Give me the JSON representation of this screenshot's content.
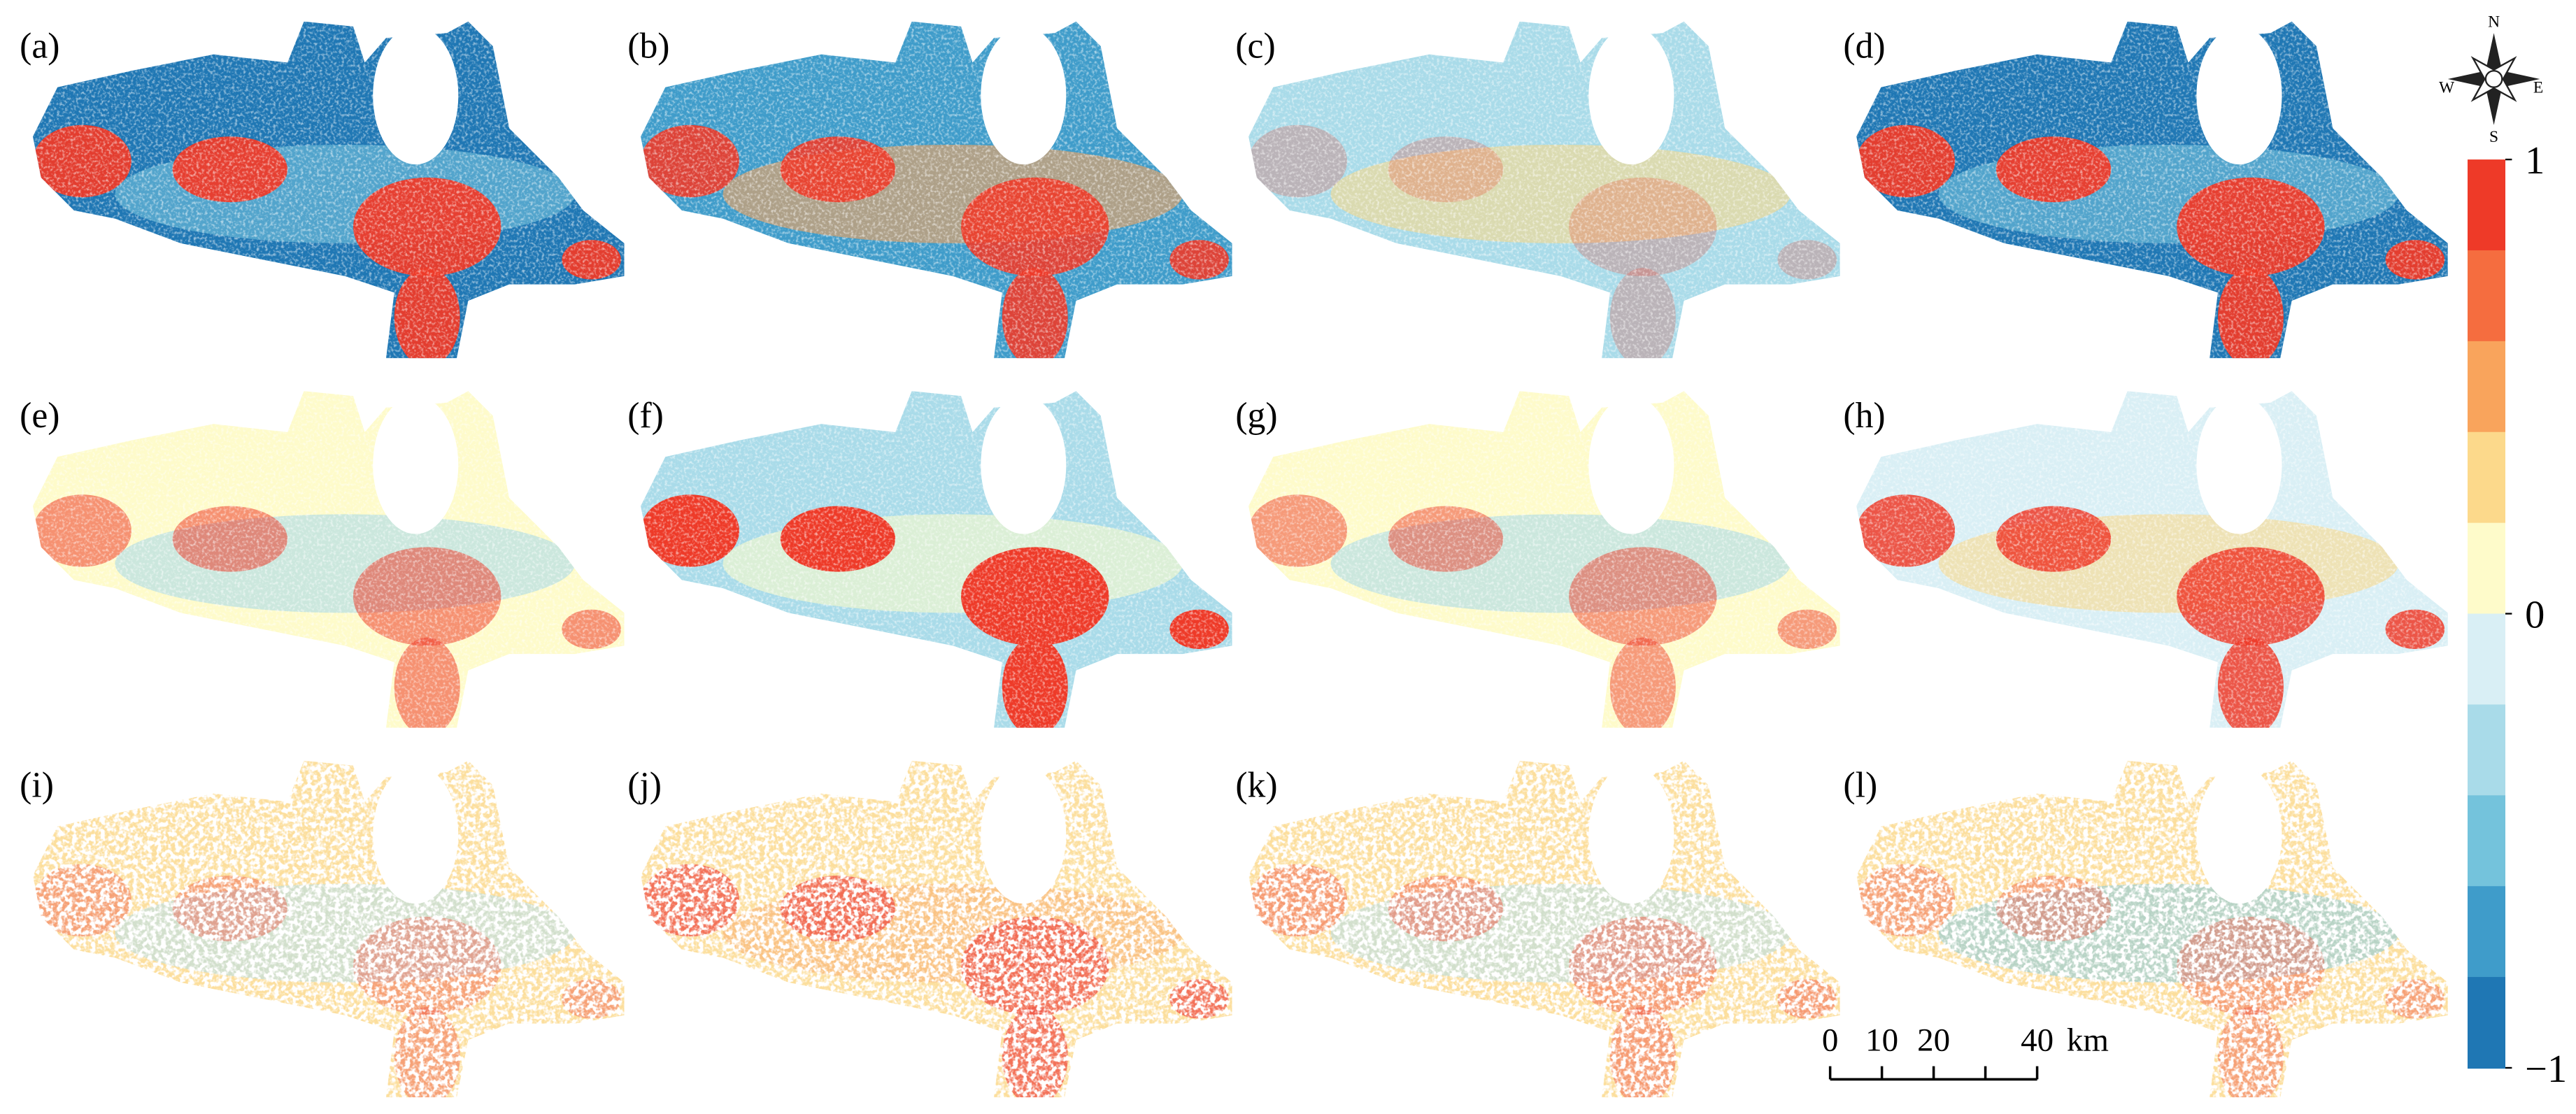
{
  "panels": [
    {
      "label": "(a)"
    },
    {
      "label": "(b)"
    },
    {
      "label": "(c)"
    },
    {
      "label": "(d)"
    },
    {
      "label": "(e)"
    },
    {
      "label": "(f)"
    },
    {
      "label": "(g)"
    },
    {
      "label": "(h)"
    },
    {
      "label": "(i)"
    },
    {
      "label": "(j)"
    },
    {
      "label": "(k)"
    },
    {
      "label": "(l)"
    }
  ],
  "colorbar": {
    "ticks": [
      1,
      0,
      {
        "value": -1,
        "label": "−1"
      }
    ],
    "colors": [
      "#ee3a28",
      "#f56d3f",
      "#f9a45c",
      "#fcd98b",
      "#fefbca",
      "#d9eff5",
      "#a9dbe9",
      "#74c3dc",
      "#3f9cca",
      "#1f77b4"
    ]
  },
  "scale_bar": {
    "ticks": [
      0,
      10,
      20,
      40
    ],
    "unit": "km"
  },
  "compass": {
    "north": "N",
    "east": "E",
    "south": "S",
    "west": "W"
  }
}
